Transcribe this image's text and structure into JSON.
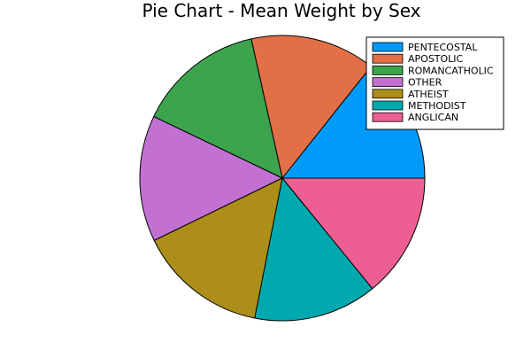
{
  "chart_data": {
    "type": "pie",
    "title": "Pie Chart - Mean Weight by Sex",
    "categories": [
      "PENTECOSTAL",
      "APOSTOLIC",
      "ROMANCATHOLIC",
      "OTHER",
      "ATHEIST",
      "METHODIST",
      "ANGLICAN"
    ],
    "values": [
      14.3,
      14.2,
      14.4,
      14.3,
      14.7,
      14.0,
      14.1
    ],
    "colors": [
      "#009af9",
      "#e26f46",
      "#3da44d",
      "#c271d2",
      "#ac8e18",
      "#00a9ad",
      "#ed5e93"
    ],
    "start_angle_deg": 0,
    "direction": "counterclockwise",
    "legend_position": "top-right",
    "grid": false
  }
}
